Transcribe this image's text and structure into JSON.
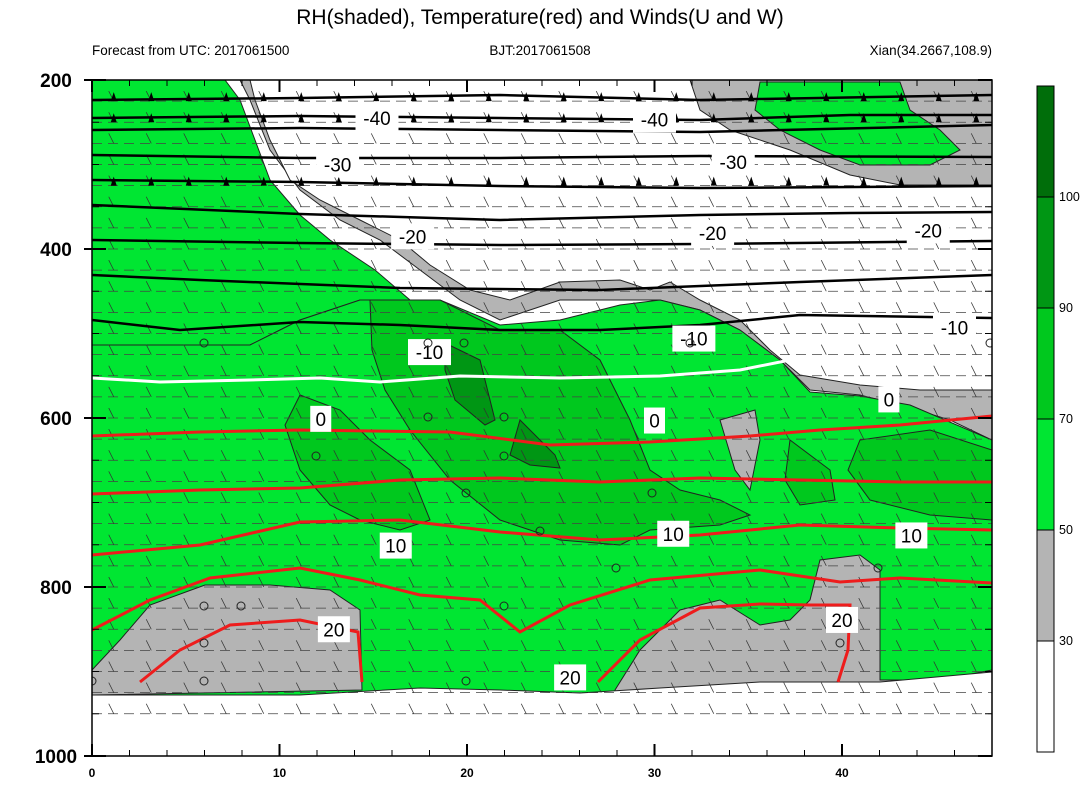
{
  "header": {
    "title": "RH(shaded), Temperature(red) and Winds(U and W)",
    "left": "Forecast from UTC: 2017061500",
    "center": "BJT:2017061508",
    "right": "Xian(34.2667,108.9)"
  },
  "chart_data": {
    "type": "contour",
    "title": "RH(shaded), Temperature(red) and Winds(U and W)",
    "x": {
      "range": [
        0,
        48
      ],
      "ticks": [
        0,
        10,
        20,
        30,
        40
      ],
      "tick_labels": [
        "0",
        "10",
        "20",
        "30",
        "40"
      ]
    },
    "y": {
      "range": [
        1000,
        200
      ],
      "ticks": [
        200,
        400,
        600,
        800,
        1000
      ],
      "tick_labels": [
        "200",
        "400",
        "600",
        "800",
        "1000"
      ],
      "inverted": true
    },
    "colorbar": {
      "levels": [
        30,
        50,
        70,
        90,
        100
      ],
      "labels": [
        "30",
        "50",
        "70",
        "90",
        "100"
      ],
      "colors": [
        "#ffffff",
        "#b4b4b4",
        "#00e632",
        "#00c81e",
        "#009614",
        "#006e0a"
      ]
    },
    "colors": {
      "rh_gray": "#b4b4b4",
      "rh_50": "#00e632",
      "rh_70": "#00c81e",
      "rh_90": "#009614",
      "temp": "#ee1c1c",
      "zero": "#ffffff"
    },
    "temperature_labels": [
      {
        "text": "-40",
        "x": 15.2,
        "y": 245
      },
      {
        "text": "-40",
        "x": 30.0,
        "y": 247
      },
      {
        "text": "-30",
        "x": 13.1,
        "y": 300
      },
      {
        "text": "-30",
        "x": 34.2,
        "y": 297
      },
      {
        "text": "-20",
        "x": 17.1,
        "y": 385
      },
      {
        "text": "-20",
        "x": 33.1,
        "y": 381
      },
      {
        "text": "-20",
        "x": 44.6,
        "y": 378
      },
      {
        "text": "-10",
        "x": 18.0,
        "y": 522
      },
      {
        "text": "-10",
        "x": 32.1,
        "y": 506
      },
      {
        "text": "-10",
        "x": 46.0,
        "y": 493
      },
      {
        "text": "0",
        "x": 12.2,
        "y": 601
      },
      {
        "text": "0",
        "x": 30.0,
        "y": 603
      },
      {
        "text": "0",
        "x": 42.5,
        "y": 578
      },
      {
        "text": "10",
        "x": 16.2,
        "y": 751
      },
      {
        "text": "10",
        "x": 31.0,
        "y": 737
      },
      {
        "text": "10",
        "x": 43.7,
        "y": 739
      },
      {
        "text": "20",
        "x": 12.9,
        "y": 850
      },
      {
        "text": "20",
        "x": 25.5,
        "y": 907
      },
      {
        "text": "20",
        "x": 40.0,
        "y": 839
      }
    ]
  }
}
